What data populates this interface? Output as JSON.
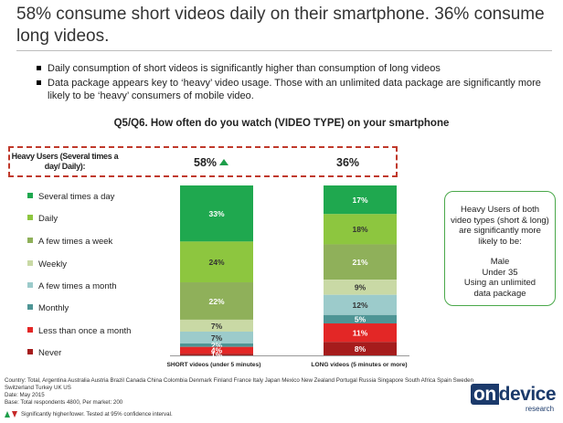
{
  "title": "58% consume short videos daily on their smartphone. 36% consume long videos.",
  "bullets": [
    "Daily consumption of short videos is significantly higher than consumption of long videos",
    "Data package appears key to ‘heavy’ video usage. Those with an unlimited data package are significantly more likely to be ‘heavy’ consumers of mobile video."
  ],
  "question": "Q5/Q6. How often do you watch (VIDEO TYPE) on your smartphone",
  "heavy_users": {
    "label": "Heavy Users (Several times a day/ Daily):",
    "short_value": "58%",
    "long_value": "36%"
  },
  "chart_data": {
    "type": "bar",
    "stacked": true,
    "categories": [
      "SHORT videos (under 5 minutes)",
      "LONG videos (5 minutes or more)"
    ],
    "series": [
      {
        "name": "Several times a day",
        "color": "#1fa84f",
        "values": [
          33,
          17
        ]
      },
      {
        "name": "Daily",
        "color": "#8dc63f",
        "values": [
          24,
          18
        ]
      },
      {
        "name": "A few times a week",
        "color": "#8fb05a",
        "values": [
          22,
          21
        ]
      },
      {
        "name": "Weekly",
        "color": "#c9d9a5",
        "values": [
          7,
          9
        ]
      },
      {
        "name": "A few times a month",
        "color": "#9ccbcb",
        "values": [
          7,
          12
        ]
      },
      {
        "name": "Monthly",
        "color": "#4e9595",
        "values": [
          2,
          5
        ]
      },
      {
        "name": "Less than once a month",
        "color": "#e32726",
        "values": [
          4,
          11
        ]
      },
      {
        "name": "Never",
        "color": "#a51c1c",
        "values": [
          1,
          8
        ]
      }
    ],
    "legend_position": "left"
  },
  "callout": {
    "text": "Heavy Users of both video types (short & long) are significantly more likely to be:",
    "traits": [
      "Male",
      "Under 35",
      "Using an unlimited data package"
    ]
  },
  "footnotes": [
    "Country: Total, Argentina Australia Austria Brazil Canada China Colombia Denmark Finland France Italy Japan Mexico New Zealand Portugal Russia Singapore South Africa Spain Sweden Switzerland Turkey UK US",
    "Date: May 2015",
    "Base: Total respondents 4800, Per market: 200"
  ],
  "significance_note": "Significantly higher/lower. Tested at 95% confidence interval.",
  "logo": {
    "part1": "on",
    "part2": "device",
    "sub": "research"
  },
  "colors": {
    "accent_red": "#c0392b",
    "up_green": "#1e9e4a",
    "down_red": "#c62828",
    "brand_navy": "#1b3a6b"
  },
  "icons": {
    "up": "up-arrow-icon",
    "down": "down-arrow-icon"
  }
}
